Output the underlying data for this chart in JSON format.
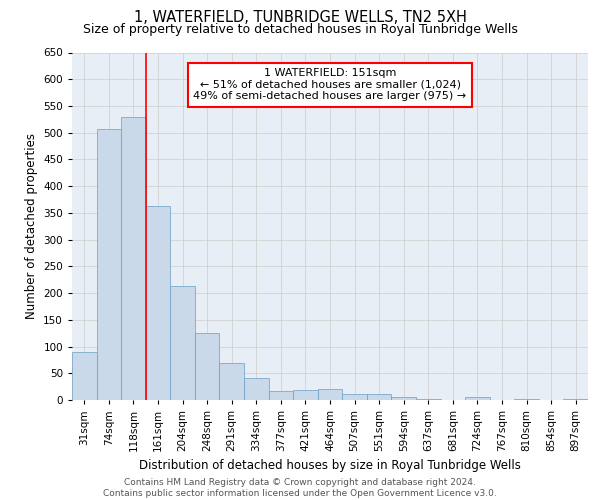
{
  "title": "1, WATERFIELD, TUNBRIDGE WELLS, TN2 5XH",
  "subtitle": "Size of property relative to detached houses in Royal Tunbridge Wells",
  "xlabel": "Distribution of detached houses by size in Royal Tunbridge Wells",
  "ylabel": "Number of detached properties",
  "footer_line1": "Contains HM Land Registry data © Crown copyright and database right 2024.",
  "footer_line2": "Contains public sector information licensed under the Open Government Licence v3.0.",
  "bar_labels": [
    "31sqm",
    "74sqm",
    "118sqm",
    "161sqm",
    "204sqm",
    "248sqm",
    "291sqm",
    "334sqm",
    "377sqm",
    "421sqm",
    "464sqm",
    "507sqm",
    "551sqm",
    "594sqm",
    "637sqm",
    "681sqm",
    "724sqm",
    "767sqm",
    "810sqm",
    "854sqm",
    "897sqm"
  ],
  "bar_values": [
    90,
    507,
    530,
    363,
    214,
    126,
    69,
    42,
    16,
    19,
    20,
    11,
    11,
    5,
    1,
    0,
    5,
    0,
    1,
    0,
    2
  ],
  "bar_color": "#c9d9ea",
  "bar_edgecolor": "#6a9fc0",
  "vline_color": "red",
  "annotation_text": "1 WATERFIELD: 151sqm\n← 51% of detached houses are smaller (1,024)\n49% of semi-detached houses are larger (975) →",
  "annotation_box_color": "white",
  "annotation_box_edgecolor": "red",
  "ylim": [
    0,
    650
  ],
  "yticks": [
    0,
    50,
    100,
    150,
    200,
    250,
    300,
    350,
    400,
    450,
    500,
    550,
    600,
    650
  ],
  "grid_color": "#cccccc",
  "background_color": "#e8eef5",
  "title_fontsize": 10.5,
  "subtitle_fontsize": 9,
  "axis_label_fontsize": 8.5,
  "tick_fontsize": 7.5,
  "annotation_fontsize": 8,
  "footer_fontsize": 6.5
}
